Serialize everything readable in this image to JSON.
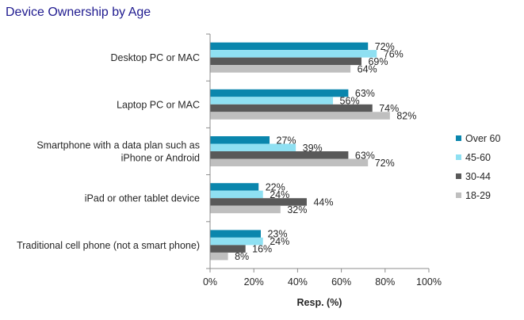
{
  "chart_data": {
    "type": "bar",
    "orientation": "horizontal",
    "title": "Device Ownership by Age",
    "xlabel": "Resp. (%)",
    "ylabel": "",
    "xlim": [
      0,
      100
    ],
    "x_ticks": [
      "0%",
      "20%",
      "40%",
      "60%",
      "80%",
      "100%"
    ],
    "grid": false,
    "legend_position": "right",
    "categories": [
      [
        "Desktop PC or MAC"
      ],
      [
        "Laptop PC or MAC"
      ],
      [
        "Smartphone with a data plan such as",
        "iPhone or Android"
      ],
      [
        "iPad or other tablet device"
      ],
      [
        "Traditional cell phone (not a smart phone)"
      ]
    ],
    "series": [
      {
        "name": "Over 60",
        "color": "#0a86ad",
        "values": [
          72,
          63,
          27,
          22,
          23
        ],
        "labels": [
          "72%",
          "63%",
          "27%",
          "22%",
          "23%"
        ]
      },
      {
        "name": "45-60",
        "color": "#8fe0f2",
        "values": [
          76,
          56,
          39,
          24,
          24
        ],
        "labels": [
          "76%",
          "56%",
          "39%",
          "24%",
          "24%"
        ]
      },
      {
        "name": "30-44",
        "color": "#595959",
        "values": [
          69,
          74,
          63,
          44,
          16
        ],
        "labels": [
          "69%",
          "74%",
          "63%",
          "44%",
          "16%"
        ]
      },
      {
        "name": "18-29",
        "color": "#bfbfbf",
        "values": [
          64,
          82,
          72,
          32,
          8
        ],
        "labels": [
          "64%",
          "82%",
          "72%",
          "32%",
          "8%"
        ]
      }
    ]
  }
}
